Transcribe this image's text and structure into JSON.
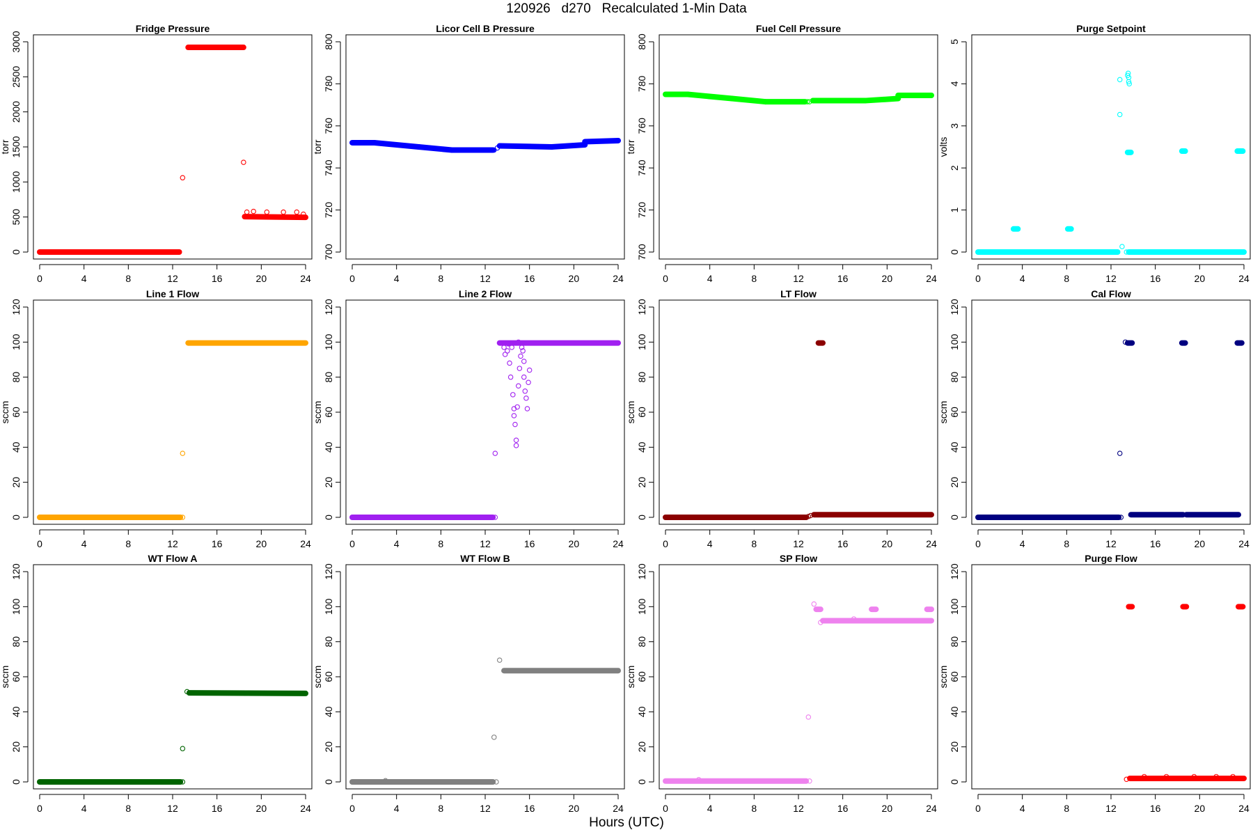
{
  "figure_title": "120926   d270   Recalculated 1-Min Data",
  "x_axis_label": "Hours (UTC)",
  "chart_data": [
    {
      "type": "scatter",
      "title": "Fridge Pressure",
      "ylabel": "torr",
      "color": "#ff0000",
      "xlim": [
        0,
        24
      ],
      "ylim": [
        0,
        3000
      ],
      "xticks": [
        0,
        4,
        8,
        12,
        16,
        20,
        24
      ],
      "yticks": [
        0,
        500,
        1000,
        1500,
        2000,
        2500,
        3000
      ],
      "segments": [
        {
          "x0": 0,
          "x1": 12.6,
          "y0": 0,
          "y1": 0
        },
        {
          "x0": 13.4,
          "x1": 18.4,
          "y0": 2920,
          "y1": 2920
        },
        {
          "x0": 18.5,
          "x1": 24,
          "y0": 505,
          "y1": 495
        }
      ],
      "points": [
        [
          12.9,
          1060
        ],
        [
          18.4,
          1280
        ],
        [
          18.7,
          570
        ],
        [
          19.3,
          580
        ],
        [
          20.5,
          570
        ],
        [
          22.0,
          570
        ],
        [
          23.2,
          570
        ],
        [
          23.8,
          540
        ]
      ]
    },
    {
      "type": "scatter",
      "title": "Licor Cell B Pressure",
      "ylabel": "torr",
      "color": "#0000ff",
      "xlim": [
        0,
        24
      ],
      "ylim": [
        700,
        800
      ],
      "xticks": [
        0,
        4,
        8,
        12,
        16,
        20,
        24
      ],
      "yticks": [
        700,
        720,
        740,
        760,
        780,
        800
      ],
      "segments": [
        {
          "x0": 0,
          "x1": 2,
          "y0": 752,
          "y1": 752
        },
        {
          "x0": 2,
          "x1": 6,
          "y0": 752,
          "y1": 750
        },
        {
          "x0": 6,
          "x1": 9,
          "y0": 750,
          "y1": 748.5
        },
        {
          "x0": 9,
          "x1": 12.7,
          "y0": 748.5,
          "y1": 748.5
        },
        {
          "x0": 13.3,
          "x1": 18,
          "y0": 750.5,
          "y1": 750
        },
        {
          "x0": 18,
          "x1": 21,
          "y0": 750,
          "y1": 751
        },
        {
          "x0": 21,
          "x1": 24,
          "y0": 752.5,
          "y1": 753
        }
      ],
      "points": [
        [
          12.8,
          748.5
        ],
        [
          13.1,
          749.5
        ]
      ]
    },
    {
      "type": "scatter",
      "title": "Fuel Cell Pressure",
      "ylabel": "torr",
      "color": "#00ff00",
      "xlim": [
        0,
        24
      ],
      "ylim": [
        700,
        800
      ],
      "xticks": [
        0,
        4,
        8,
        12,
        16,
        20,
        24
      ],
      "yticks": [
        700,
        720,
        740,
        760,
        780,
        800
      ],
      "segments": [
        {
          "x0": 0,
          "x1": 2,
          "y0": 775,
          "y1": 775
        },
        {
          "x0": 2,
          "x1": 6,
          "y0": 775,
          "y1": 773
        },
        {
          "x0": 6,
          "x1": 9,
          "y0": 773,
          "y1": 771.5
        },
        {
          "x0": 9,
          "x1": 12.6,
          "y0": 771.5,
          "y1": 771.5
        },
        {
          "x0": 13.3,
          "x1": 18,
          "y0": 772,
          "y1": 772
        },
        {
          "x0": 18,
          "x1": 21,
          "y0": 772,
          "y1": 773
        },
        {
          "x0": 21,
          "x1": 24,
          "y0": 774.5,
          "y1": 774.5
        }
      ],
      "points": [
        [
          12.8,
          771.5
        ],
        [
          13.0,
          771.5
        ]
      ]
    },
    {
      "type": "scatter",
      "title": "Purge Setpoint",
      "ylabel": "volts",
      "color": "#00ffff",
      "xlim": [
        0,
        24
      ],
      "ylim": [
        0,
        5
      ],
      "xticks": [
        0,
        4,
        8,
        12,
        16,
        20,
        24
      ],
      "yticks": [
        0,
        1,
        2,
        3,
        4,
        5
      ],
      "segments": [
        {
          "x0": 0,
          "x1": 12.6,
          "y0": 0,
          "y1": 0
        },
        {
          "x0": 13.6,
          "x1": 24,
          "y0": 0,
          "y1": 0
        },
        {
          "x0": 3.2,
          "x1": 3.6,
          "y0": 0.55,
          "y1": 0.55
        },
        {
          "x0": 8.1,
          "x1": 8.4,
          "y0": 0.55,
          "y1": 0.55
        },
        {
          "x0": 13.5,
          "x1": 13.8,
          "y0": 2.37,
          "y1": 2.37
        },
        {
          "x0": 18.4,
          "x1": 18.7,
          "y0": 2.4,
          "y1": 2.4
        },
        {
          "x0": 23.4,
          "x1": 23.9,
          "y0": 2.4,
          "y1": 2.4
        }
      ],
      "points": [
        [
          12.8,
          4.1
        ],
        [
          12.8,
          3.27
        ],
        [
          13.0,
          0.13
        ],
        [
          13.4,
          0
        ],
        [
          13.5,
          4.2
        ],
        [
          13.55,
          4.25
        ],
        [
          13.6,
          4.15
        ],
        [
          13.6,
          4.05
        ],
        [
          13.65,
          4.0
        ]
      ]
    },
    {
      "type": "scatter",
      "title": "Line 1 Flow",
      "ylabel": "sccm",
      "color": "#ffa500",
      "xlim": [
        0,
        24
      ],
      "ylim": [
        0,
        120
      ],
      "xticks": [
        0,
        4,
        8,
        12,
        16,
        20,
        24
      ],
      "yticks": [
        0,
        20,
        40,
        60,
        80,
        100,
        120
      ],
      "segments": [
        {
          "x0": 0,
          "x1": 12.7,
          "y0": 0,
          "y1": 0
        },
        {
          "x0": 13.4,
          "x1": 24,
          "y0": 99.5,
          "y1": 99.5
        }
      ],
      "points": [
        [
          12.9,
          36.5
        ],
        [
          12.9,
          0
        ]
      ]
    },
    {
      "type": "scatter",
      "title": "Line 2 Flow",
      "ylabel": "sccm",
      "color": "#a020f0",
      "xlim": [
        0,
        24
      ],
      "ylim": [
        0,
        120
      ],
      "xticks": [
        0,
        4,
        8,
        12,
        16,
        20,
        24
      ],
      "yticks": [
        0,
        20,
        40,
        60,
        80,
        100,
        120
      ],
      "segments": [
        {
          "x0": 0,
          "x1": 12.7,
          "y0": 0,
          "y1": 0
        },
        {
          "x0": 13.3,
          "x1": 24,
          "y0": 99.5,
          "y1": 99.5
        }
      ],
      "points": [
        [
          12.9,
          0
        ],
        [
          12.9,
          36.5
        ],
        [
          13.7,
          97
        ],
        [
          13.8,
          93
        ],
        [
          14.0,
          95
        ],
        [
          14.2,
          88
        ],
        [
          14.3,
          80
        ],
        [
          14.5,
          70
        ],
        [
          14.6,
          62
        ],
        [
          14.6,
          58
        ],
        [
          14.7,
          53
        ],
        [
          14.8,
          44
        ],
        [
          14.8,
          41
        ],
        [
          14.9,
          63
        ],
        [
          15.0,
          75
        ],
        [
          15.1,
          85
        ],
        [
          15.2,
          92
        ],
        [
          15.3,
          97
        ],
        [
          15.5,
          89
        ],
        [
          15.5,
          80
        ],
        [
          15.6,
          72
        ],
        [
          15.7,
          68
        ],
        [
          15.8,
          62
        ],
        [
          15.9,
          77
        ],
        [
          16.0,
          84
        ],
        [
          14.4,
          97
        ],
        [
          15.0,
          100
        ],
        [
          14.1,
          99
        ],
        [
          15.4,
          95
        ]
      ]
    },
    {
      "type": "scatter",
      "title": "LT Flow",
      "ylabel": "sccm",
      "color": "#8b0000",
      "xlim": [
        0,
        24
      ],
      "ylim": [
        0,
        120
      ],
      "xticks": [
        0,
        4,
        8,
        12,
        16,
        20,
        24
      ],
      "yticks": [
        0,
        20,
        40,
        60,
        80,
        100,
        120
      ],
      "segments": [
        {
          "x0": 0,
          "x1": 12.7,
          "y0": 0,
          "y1": 0
        },
        {
          "x0": 13.4,
          "x1": 24,
          "y0": 1.5,
          "y1": 1.5
        },
        {
          "x0": 13.8,
          "x1": 14.2,
          "y0": 99.5,
          "y1": 99.5
        }
      ],
      "points": [
        [
          12.9,
          0.5
        ],
        [
          13.1,
          1
        ]
      ]
    },
    {
      "type": "scatter",
      "title": "Cal Flow",
      "ylabel": "sccm",
      "color": "#000080",
      "xlim": [
        0,
        24
      ],
      "ylim": [
        0,
        120
      ],
      "xticks": [
        0,
        4,
        8,
        12,
        16,
        20,
        24
      ],
      "yticks": [
        0,
        20,
        40,
        60,
        80,
        100,
        120
      ],
      "segments": [
        {
          "x0": 0,
          "x1": 12.7,
          "y0": 0,
          "y1": 0
        },
        {
          "x0": 13.8,
          "x1": 18.5,
          "y0": 1.5,
          "y1": 1.5
        },
        {
          "x0": 18.8,
          "x1": 23.5,
          "y0": 1.5,
          "y1": 1.5
        },
        {
          "x0": 13.5,
          "x1": 13.9,
          "y0": 99.5,
          "y1": 99.5
        },
        {
          "x0": 18.4,
          "x1": 18.7,
          "y0": 99.5,
          "y1": 99.5
        },
        {
          "x0": 23.4,
          "x1": 23.8,
          "y0": 99.5,
          "y1": 99.5
        }
      ],
      "points": [
        [
          12.8,
          36.5
        ],
        [
          12.9,
          0
        ],
        [
          13.3,
          100
        ]
      ]
    },
    {
      "type": "scatter",
      "title": "WT Flow A",
      "ylabel": "sccm",
      "color": "#006400",
      "xlim": [
        0,
        24
      ],
      "ylim": [
        0,
        120
      ],
      "xticks": [
        0,
        4,
        8,
        12,
        16,
        20,
        24
      ],
      "yticks": [
        0,
        20,
        40,
        60,
        80,
        100,
        120
      ],
      "segments": [
        {
          "x0": 0,
          "x1": 12.7,
          "y0": 0,
          "y1": 0
        },
        {
          "x0": 13.5,
          "x1": 24,
          "y0": 50.8,
          "y1": 50.5
        }
      ],
      "points": [
        [
          12.9,
          19
        ],
        [
          12.9,
          0
        ],
        [
          13.3,
          51.5
        ]
      ]
    },
    {
      "type": "scatter",
      "title": "WT Flow B",
      "ylabel": "sccm",
      "color": "#808080",
      "xlim": [
        0,
        24
      ],
      "ylim": [
        0,
        120
      ],
      "xticks": [
        0,
        4,
        8,
        12,
        16,
        20,
        24
      ],
      "yticks": [
        0,
        20,
        40,
        60,
        80,
        100,
        120
      ],
      "segments": [
        {
          "x0": 0,
          "x1": 12.7,
          "y0": 0,
          "y1": 0
        },
        {
          "x0": 13.7,
          "x1": 24,
          "y0": 63.5,
          "y1": 63.5
        }
      ],
      "points": [
        [
          12.8,
          25.5
        ],
        [
          13.0,
          0
        ],
        [
          13.3,
          69.5
        ],
        [
          3.0,
          0.7
        ]
      ]
    },
    {
      "type": "scatter",
      "title": "SP Flow",
      "ylabel": "sccm",
      "color": "#ee82ee",
      "xlim": [
        0,
        24
      ],
      "ylim": [
        0,
        120
      ],
      "xticks": [
        0,
        4,
        8,
        12,
        16,
        20,
        24
      ],
      "yticks": [
        0,
        20,
        40,
        60,
        80,
        100,
        120
      ],
      "segments": [
        {
          "x0": 0,
          "x1": 12.7,
          "y0": 0.5,
          "y1": 0.5
        },
        {
          "x0": 14.2,
          "x1": 24,
          "y0": 92,
          "y1": 92
        },
        {
          "x0": 13.6,
          "x1": 14.0,
          "y0": 98.5,
          "y1": 98.5
        },
        {
          "x0": 18.6,
          "x1": 19.0,
          "y0": 98.5,
          "y1": 98.5
        },
        {
          "x0": 23.6,
          "x1": 24,
          "y0": 98.5,
          "y1": 98.5
        }
      ],
      "points": [
        [
          12.9,
          37
        ],
        [
          13.0,
          0.5
        ],
        [
          13.4,
          101.5
        ],
        [
          3.0,
          1.3
        ],
        [
          14.0,
          91
        ],
        [
          17.0,
          93
        ]
      ]
    },
    {
      "type": "scatter",
      "title": "Purge Flow",
      "ylabel": "sccm",
      "color": "#ff0000",
      "xlim": [
        0,
        24
      ],
      "ylim": [
        0,
        120
      ],
      "xticks": [
        0,
        4,
        8,
        12,
        16,
        20,
        24
      ],
      "yticks": [
        0,
        20,
        40,
        60,
        80,
        100,
        120
      ],
      "segments": [
        {
          "x0": 13.7,
          "x1": 24,
          "y0": 2,
          "y1": 2
        },
        {
          "x0": 13.6,
          "x1": 13.9,
          "y0": 100,
          "y1": 100
        },
        {
          "x0": 18.5,
          "x1": 18.8,
          "y0": 100,
          "y1": 100
        },
        {
          "x0": 23.5,
          "x1": 23.9,
          "y0": 100,
          "y1": 100
        }
      ],
      "points": [
        [
          13.4,
          1.5
        ],
        [
          15.0,
          3
        ],
        [
          17.0,
          3
        ],
        [
          19.5,
          3
        ],
        [
          21.5,
          3
        ],
        [
          23.0,
          3
        ]
      ]
    }
  ]
}
